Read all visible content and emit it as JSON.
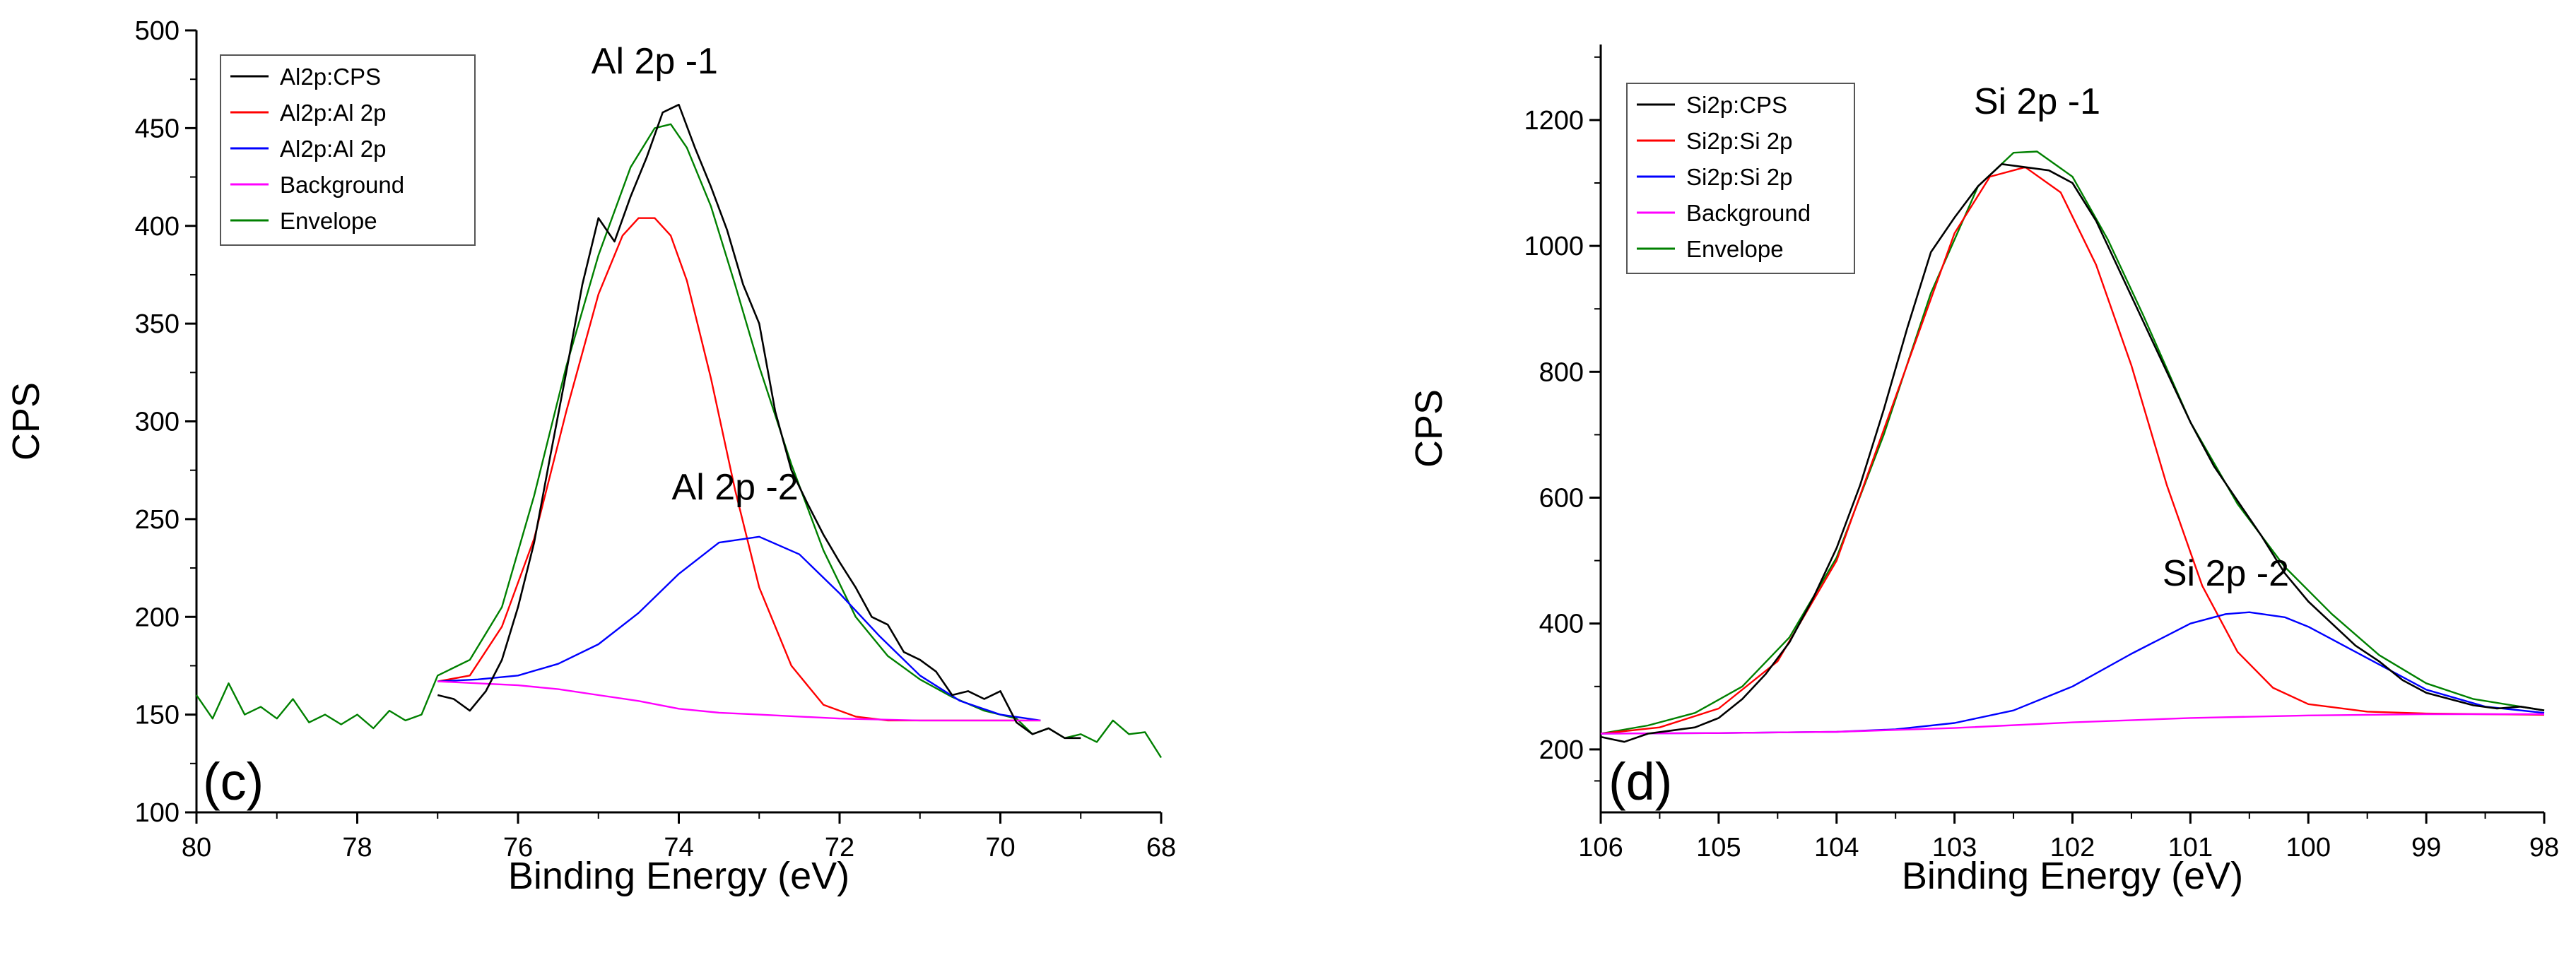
{
  "chart_data": [
    {
      "type": "line",
      "panel_label": "(c)",
      "xlabel": "Binding Energy (eV)",
      "ylabel": "CPS",
      "xlim": [
        80,
        68
      ],
      "ylim": [
        100,
        500
      ],
      "x_reversed": true,
      "xticks": [
        80,
        78,
        76,
        74,
        72,
        70,
        68
      ],
      "xtick_labels": [
        "80",
        "78",
        "76",
        "74",
        "72",
        "70",
        "68"
      ],
      "yticks": [
        100,
        150,
        200,
        250,
        300,
        350,
        400,
        450,
        500
      ],
      "ytick_labels": [
        "100",
        "150",
        "200",
        "250",
        "300",
        "350",
        "400",
        "450",
        "500"
      ],
      "legend_position": "top-left",
      "annotations": [
        {
          "text": "Al 2p -1",
          "x": 74.3,
          "y": 478
        },
        {
          "text": "Al 2p -2",
          "x": 73.3,
          "y": 260
        }
      ],
      "series": [
        {
          "name": "Al2p:CPS",
          "color": "#000000",
          "x": [
            77.0,
            76.8,
            76.6,
            76.4,
            76.2,
            76.0,
            75.8,
            75.6,
            75.4,
            75.2,
            75.0,
            74.8,
            74.6,
            74.4,
            74.2,
            74.0,
            73.8,
            73.6,
            73.4,
            73.2,
            73.0,
            72.8,
            72.6,
            72.4,
            72.2,
            72.0,
            71.8,
            71.6,
            71.4,
            71.2,
            71.0,
            70.8,
            70.6,
            70.4,
            70.2,
            70.0,
            69.8,
            69.6,
            69.4,
            69.2,
            69.0
          ],
          "y": [
            160,
            158,
            152,
            162,
            178,
            205,
            238,
            282,
            325,
            370,
            404,
            392,
            415,
            435,
            458,
            462,
            440,
            420,
            398,
            370,
            350,
            305,
            275,
            258,
            242,
            228,
            215,
            200,
            196,
            182,
            178,
            172,
            160,
            162,
            158,
            162,
            146,
            140,
            143,
            138,
            138
          ]
        },
        {
          "name": "Al2p:Al 2p",
          "color": "#ff0000",
          "x": [
            77.0,
            76.6,
            76.2,
            75.8,
            75.4,
            75.0,
            74.7,
            74.5,
            74.3,
            74.1,
            73.9,
            73.6,
            73.3,
            73.0,
            72.6,
            72.2,
            71.8,
            71.4,
            71.0,
            70.5,
            70.0,
            69.5
          ],
          "y": [
            167,
            170,
            195,
            240,
            305,
            365,
            395,
            404,
            404,
            395,
            372,
            322,
            265,
            215,
            175,
            155,
            149,
            147,
            147,
            147,
            147,
            147
          ]
        },
        {
          "name": "Al2p:Al 2p",
          "color": "#0000ff",
          "x": [
            77.0,
            76.5,
            76.0,
            75.5,
            75.0,
            74.5,
            74.0,
            73.5,
            73.0,
            72.5,
            72.0,
            71.5,
            71.0,
            70.5,
            70.0,
            69.5
          ],
          "y": [
            167,
            168,
            170,
            176,
            186,
            202,
            222,
            238,
            241,
            232,
            212,
            190,
            170,
            157,
            150,
            147
          ]
        },
        {
          "name": "Background",
          "color": "#ff00ff",
          "x": [
            77.0,
            76.5,
            76.0,
            75.5,
            75.0,
            74.5,
            74.0,
            73.5,
            73.0,
            72.5,
            72.0,
            71.0,
            70.0,
            69.5
          ],
          "y": [
            167,
            166,
            165,
            163,
            160,
            157,
            153,
            151,
            150,
            149,
            148,
            147,
            147,
            147
          ]
        },
        {
          "name": "Envelope",
          "color": "#008000",
          "x": [
            80.0,
            79.8,
            79.6,
            79.4,
            79.2,
            79.0,
            78.8,
            78.6,
            78.4,
            78.2,
            78.0,
            77.8,
            77.6,
            77.4,
            77.2,
            77.0,
            76.6,
            76.2,
            75.8,
            75.4,
            75.0,
            74.6,
            74.3,
            74.1,
            73.9,
            73.6,
            73.3,
            73.0,
            72.6,
            72.2,
            71.8,
            71.4,
            71.0,
            70.6,
            70.2,
            69.8,
            69.6,
            69.4,
            69.2,
            69.0,
            68.8,
            68.6,
            68.4,
            68.2,
            68.0
          ],
          "y": [
            160,
            148,
            166,
            150,
            154,
            148,
            158,
            146,
            150,
            145,
            150,
            143,
            152,
            147,
            150,
            170,
            178,
            205,
            262,
            328,
            385,
            430,
            450,
            452,
            440,
            410,
            370,
            328,
            278,
            234,
            200,
            180,
            168,
            159,
            152,
            148,
            140,
            143,
            138,
            140,
            136,
            147,
            140,
            141,
            128
          ]
        }
      ]
    },
    {
      "type": "line",
      "panel_label": "(d)",
      "xlabel": "Binding Energy (eV)",
      "ylabel": "CPS",
      "xlim": [
        106,
        98
      ],
      "ylim": [
        100,
        1320
      ],
      "x_reversed": true,
      "xticks": [
        106,
        105,
        104,
        103,
        102,
        101,
        100,
        99,
        98
      ],
      "xtick_labels": [
        "106",
        "105",
        "104",
        "103",
        "102",
        "101",
        "100",
        "99",
        "98"
      ],
      "yticks": [
        200,
        400,
        600,
        800,
        1000,
        1200
      ],
      "ytick_labels": [
        "200",
        "400",
        "600",
        "800",
        "1000",
        "1200"
      ],
      "legend_position": "top-left",
      "annotations": [
        {
          "text": "Si 2p -1",
          "x": 102.3,
          "y": 1210
        },
        {
          "text": "Si 2p -2",
          "x": 100.7,
          "y": 460
        }
      ],
      "series": [
        {
          "name": "Si2p:CPS",
          "color": "#000000",
          "x": [
            106.0,
            105.8,
            105.6,
            105.4,
            105.2,
            105.0,
            104.8,
            104.6,
            104.4,
            104.2,
            104.0,
            103.8,
            103.6,
            103.4,
            103.2,
            103.0,
            102.8,
            102.6,
            102.4,
            102.2,
            102.0,
            101.8,
            101.6,
            101.4,
            101.2,
            101.0,
            100.8,
            100.6,
            100.4,
            100.2,
            100.0,
            99.8,
            99.6,
            99.4,
            99.2,
            99.0,
            98.8,
            98.6,
            98.4,
            98.2,
            98.0
          ],
          "y": [
            220,
            212,
            225,
            230,
            235,
            250,
            280,
            320,
            370,
            440,
            520,
            620,
            740,
            870,
            990,
            1045,
            1095,
            1130,
            1125,
            1120,
            1100,
            1040,
            960,
            880,
            800,
            720,
            650,
            595,
            540,
            480,
            435,
            400,
            365,
            340,
            310,
            290,
            280,
            270,
            265,
            268,
            262
          ]
        },
        {
          "name": "Si2p:Si 2p",
          "color": "#ff0000",
          "x": [
            106.0,
            105.5,
            105.0,
            104.5,
            104.0,
            103.5,
            103.0,
            102.7,
            102.4,
            102.1,
            101.8,
            101.5,
            101.2,
            100.9,
            100.6,
            100.3,
            100.0,
            99.5,
            99.0,
            98.5,
            98.0
          ],
          "y": [
            225,
            235,
            265,
            340,
            500,
            760,
            1020,
            1110,
            1125,
            1085,
            970,
            810,
            620,
            460,
            355,
            298,
            272,
            260,
            257,
            256,
            255
          ]
        },
        {
          "name": "Si2p:Si 2p",
          "color": "#0000ff",
          "x": [
            106.0,
            105.0,
            104.0,
            103.5,
            103.0,
            102.5,
            102.0,
            101.5,
            101.0,
            100.7,
            100.5,
            100.2,
            100.0,
            99.5,
            99.0,
            98.5,
            98.0
          ],
          "y": [
            225,
            226,
            228,
            232,
            242,
            262,
            300,
            352,
            400,
            415,
            418,
            410,
            395,
            345,
            295,
            268,
            258
          ]
        },
        {
          "name": "Background",
          "color": "#ff00ff",
          "x": [
            106.0,
            105.0,
            104.0,
            103.0,
            102.0,
            101.0,
            100.0,
            99.0,
            98.0
          ],
          "y": [
            225,
            226,
            228,
            234,
            243,
            250,
            254,
            256,
            256
          ]
        },
        {
          "name": "Envelope",
          "color": "#008000",
          "x": [
            106.0,
            105.6,
            105.2,
            104.8,
            104.4,
            104.0,
            103.6,
            103.2,
            102.8,
            102.5,
            102.3,
            102.0,
            101.7,
            101.4,
            101.0,
            100.6,
            100.2,
            99.8,
            99.4,
            99.0,
            98.6,
            98.0
          ],
          "y": [
            225,
            238,
            258,
            300,
            378,
            505,
            700,
            925,
            1095,
            1148,
            1150,
            1110,
            1010,
            890,
            720,
            590,
            490,
            415,
            350,
            305,
            280,
            262
          ]
        }
      ]
    }
  ]
}
